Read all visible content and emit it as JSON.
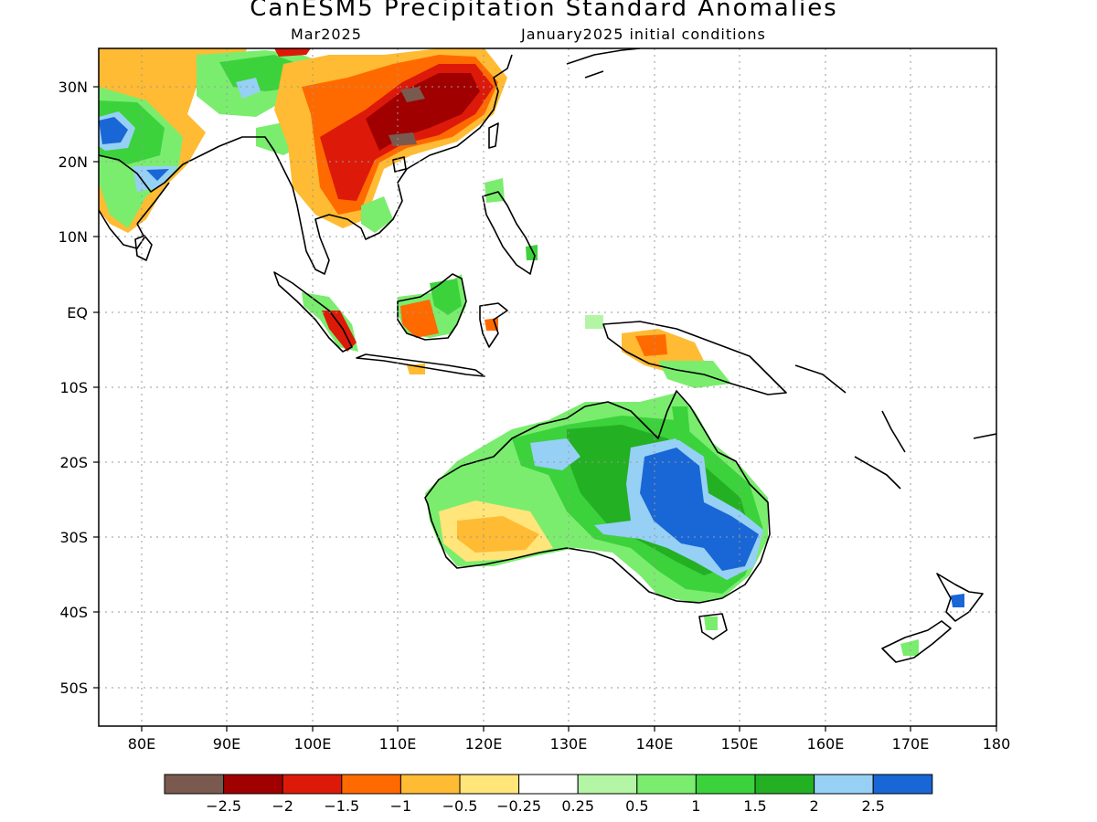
{
  "title": "CanESM5 Precipitation Standard Anomalies",
  "subtitle_left": "Mar2025",
  "subtitle_right": "January2025 initial conditions",
  "lon_ticks": [
    "80E",
    "90E",
    "100E",
    "110E",
    "120E",
    "130E",
    "140E",
    "150E",
    "160E",
    "170E",
    "180"
  ],
  "lat_ticks": [
    "30N",
    "20N",
    "10N",
    "EQ",
    "10S",
    "20S",
    "30S",
    "40S",
    "50S"
  ],
  "colorbar": {
    "colors": [
      "#7a5a4e",
      "#a00000",
      "#dd1a0a",
      "#ff6a00",
      "#ffbb33",
      "#ffe57a",
      "#ffffff",
      "#b4f5a5",
      "#7aed6e",
      "#3cd23c",
      "#23b023",
      "#96d0f5",
      "#1966d6"
    ],
    "labels": [
      "−2.5",
      "−2",
      "−1.5",
      "−1",
      "−0.5",
      "−0.25",
      "0.25",
      "0.5",
      "1",
      "1.5",
      "2",
      "2.5"
    ]
  }
}
